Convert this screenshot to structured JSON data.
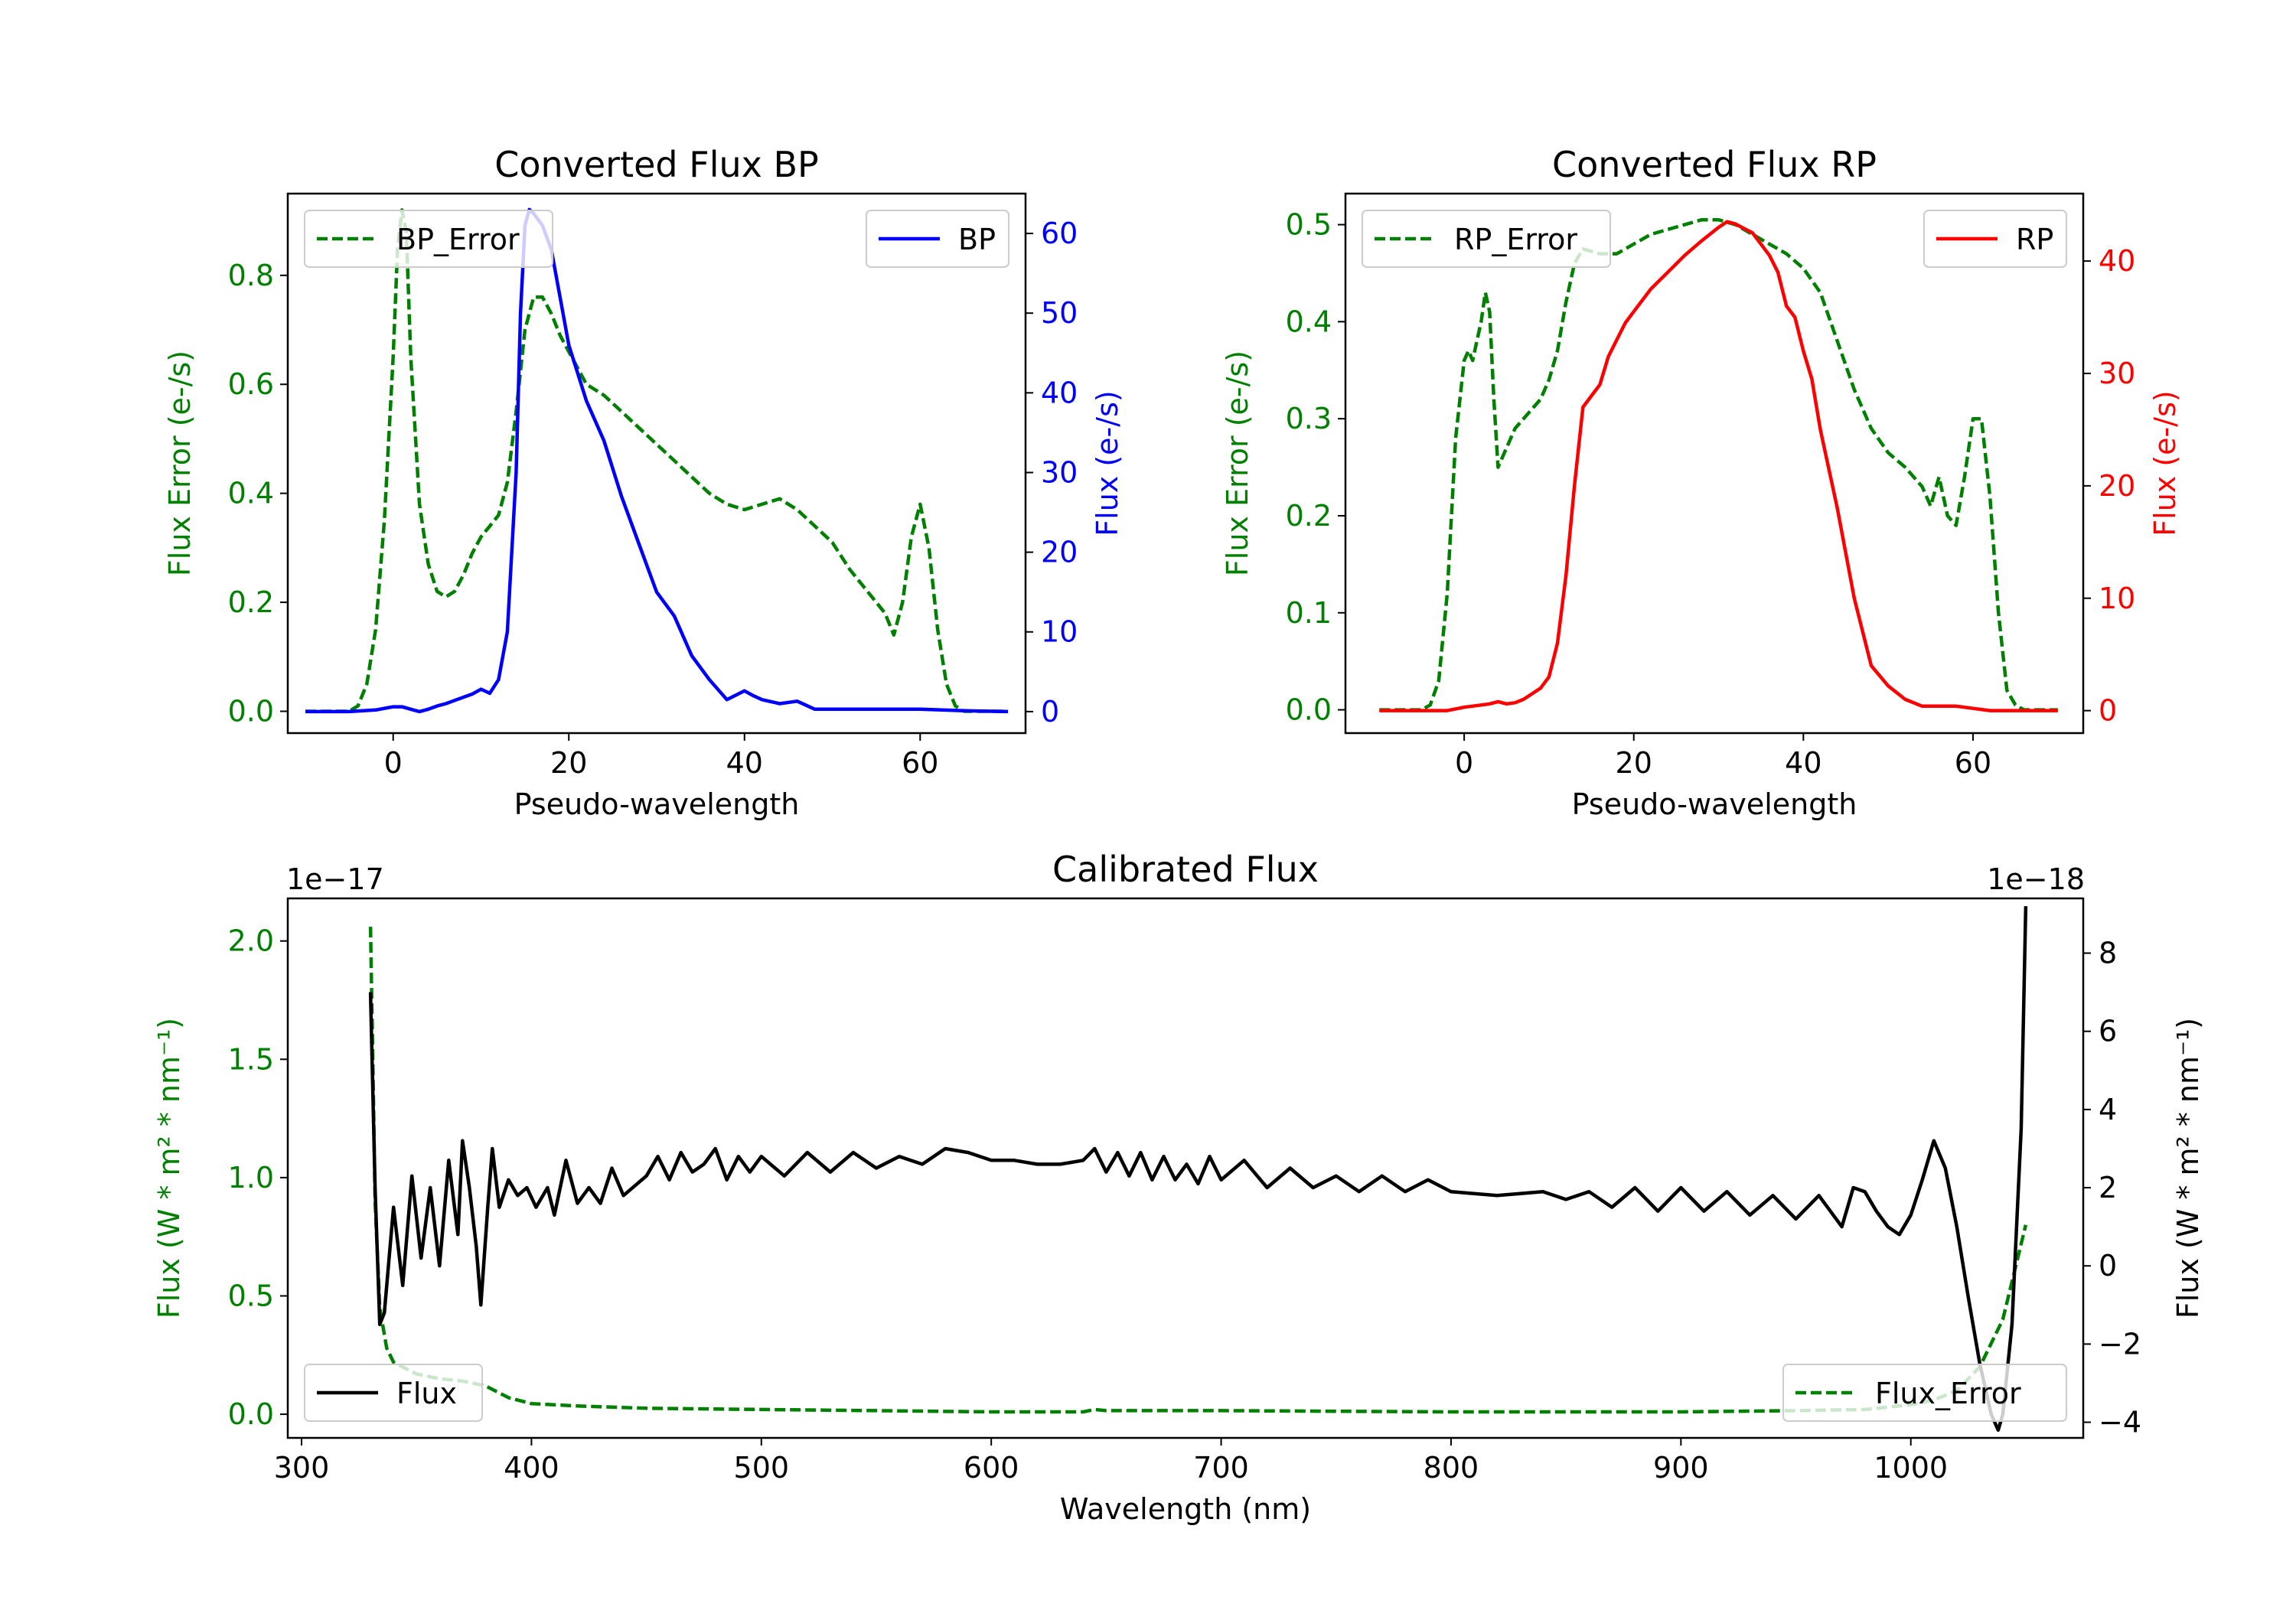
{
  "chart_data": [
    {
      "type": "line",
      "title": "Converted Flux BP",
      "xlabel": "Pseudo-wavelength",
      "ylabel_left": "Flux Error (e-/s)",
      "ylabel_right": "Flux (e-/s)",
      "xlim": [
        -12,
        72
      ],
      "ylim_left": [
        -0.04,
        0.95
      ],
      "ylim_right": [
        -2.7,
        65
      ],
      "x_ticks": [
        0,
        20,
        40,
        60
      ],
      "y_left_ticks": [
        0.0,
        0.2,
        0.4,
        0.6,
        0.8
      ],
      "y_left_tick_labels": [
        "0.0",
        "0.2",
        "0.4",
        "0.6",
        "0.8"
      ],
      "y_right_ticks": [
        0,
        10,
        20,
        30,
        40,
        50,
        60
      ],
      "colors": {
        "left_axis": "#008000",
        "right_axis": "#0000ff"
      },
      "series": [
        {
          "name": "BP_Error",
          "axis": "left",
          "style": "dashed",
          "color": "#008000",
          "legend_position": "upper-left",
          "x": [
            -10,
            -5,
            -4,
            -3,
            -2,
            -1,
            0,
            0.5,
            1,
            1.5,
            2,
            3,
            4,
            5,
            6,
            7,
            8,
            9,
            10,
            11,
            12,
            13,
            14,
            15,
            16,
            17,
            18,
            19,
            20,
            22,
            24,
            26,
            28,
            30,
            32,
            34,
            36,
            38,
            40,
            42,
            44,
            46,
            48,
            50,
            52,
            54,
            56,
            57,
            58,
            59,
            60,
            61,
            62,
            63,
            64,
            65,
            66,
            70
          ],
          "y": [
            0.0,
            0.0,
            0.01,
            0.05,
            0.15,
            0.35,
            0.65,
            0.85,
            0.92,
            0.88,
            0.65,
            0.38,
            0.27,
            0.22,
            0.21,
            0.22,
            0.25,
            0.29,
            0.32,
            0.34,
            0.36,
            0.42,
            0.55,
            0.7,
            0.76,
            0.76,
            0.73,
            0.69,
            0.66,
            0.6,
            0.58,
            0.55,
            0.52,
            0.49,
            0.46,
            0.43,
            0.4,
            0.38,
            0.37,
            0.38,
            0.39,
            0.37,
            0.34,
            0.31,
            0.26,
            0.22,
            0.18,
            0.14,
            0.2,
            0.32,
            0.38,
            0.3,
            0.15,
            0.05,
            0.01,
            0.0,
            0.0,
            0.0
          ]
        },
        {
          "name": "BP",
          "axis": "right",
          "style": "solid",
          "color": "#0000ff",
          "legend_position": "upper-right",
          "x": [
            -10,
            -5,
            -2,
            0,
            1,
            2,
            3,
            4,
            5,
            6,
            7,
            8,
            9,
            10,
            11,
            12,
            13,
            14,
            14.5,
            15,
            15.5,
            16,
            17,
            18,
            19,
            20,
            22,
            24,
            26,
            28,
            30,
            32,
            34,
            36,
            38,
            40,
            41,
            42,
            44,
            46,
            48,
            50,
            55,
            60,
            65,
            70
          ],
          "y": [
            0.0,
            0.0,
            0.2,
            0.6,
            0.6,
            0.3,
            0.0,
            0.3,
            0.7,
            1.0,
            1.4,
            1.8,
            2.2,
            2.8,
            2.3,
            4.0,
            10.0,
            30.0,
            50.0,
            61.0,
            63.0,
            62.5,
            61.0,
            58.0,
            52.0,
            46.0,
            39.0,
            34.0,
            27.0,
            21.0,
            15.0,
            12.0,
            7.0,
            4.0,
            1.5,
            2.6,
            2.0,
            1.5,
            1.0,
            1.3,
            0.3,
            0.3,
            0.3,
            0.3,
            0.1,
            0.0
          ]
        }
      ]
    },
    {
      "type": "line",
      "title": "Converted Flux RP",
      "xlabel": "Pseudo-wavelength",
      "ylabel_left": "Flux Error (e-/s)",
      "ylabel_right": "Flux (e-/s)",
      "xlim": [
        -14,
        73
      ],
      "ylim_left": [
        -0.024,
        0.532
      ],
      "ylim_right": [
        -2.0,
        46.0
      ],
      "x_ticks": [
        0,
        20,
        40,
        60
      ],
      "y_left_ticks": [
        0.0,
        0.1,
        0.2,
        0.3,
        0.4,
        0.5
      ],
      "y_left_tick_labels": [
        "0.0",
        "0.1",
        "0.2",
        "0.3",
        "0.4",
        "0.5"
      ],
      "y_right_ticks": [
        0,
        10,
        20,
        30,
        40
      ],
      "colors": {
        "left_axis": "#008000",
        "right_axis": "#ff0000"
      },
      "series": [
        {
          "name": "RP_Error",
          "axis": "left",
          "style": "dashed",
          "color": "#008000",
          "legend_position": "upper-left",
          "x": [
            -10,
            -5,
            -4,
            -3,
            -2,
            -1,
            0,
            0.5,
            1,
            1.5,
            2,
            2.5,
            3,
            3.5,
            4,
            5,
            6,
            7,
            8,
            9,
            10,
            11,
            12,
            13,
            14,
            16,
            18,
            20,
            22,
            24,
            26,
            28,
            30,
            32,
            34,
            36,
            38,
            40,
            42,
            44,
            46,
            48,
            50,
            52,
            54,
            55,
            56,
            57,
            58,
            59,
            60,
            61,
            62,
            63,
            64,
            65,
            66,
            70
          ],
          "y": [
            0.0,
            0.0,
            0.005,
            0.03,
            0.12,
            0.28,
            0.36,
            0.37,
            0.36,
            0.38,
            0.4,
            0.43,
            0.41,
            0.32,
            0.25,
            0.27,
            0.29,
            0.3,
            0.31,
            0.32,
            0.34,
            0.37,
            0.42,
            0.46,
            0.475,
            0.47,
            0.47,
            0.48,
            0.49,
            0.495,
            0.5,
            0.505,
            0.505,
            0.5,
            0.49,
            0.48,
            0.47,
            0.455,
            0.43,
            0.38,
            0.33,
            0.29,
            0.265,
            0.25,
            0.23,
            0.21,
            0.24,
            0.2,
            0.19,
            0.24,
            0.3,
            0.3,
            0.22,
            0.1,
            0.02,
            0.005,
            0.0,
            0.0
          ],
          "dash_gaps_near_x": [
            55
          ]
        },
        {
          "name": "RP",
          "axis": "right",
          "style": "solid",
          "color": "#ff0000",
          "legend_position": "upper-right",
          "x": [
            -10,
            -5,
            -2,
            0,
            2,
            3,
            4,
            5,
            6,
            7,
            8,
            9,
            10,
            11,
            12,
            13,
            14,
            15,
            16,
            17,
            18,
            19,
            20,
            22,
            24,
            26,
            28,
            30,
            31,
            32,
            34,
            36,
            37,
            38,
            39,
            40,
            41,
            42,
            44,
            46,
            48,
            50,
            52,
            54,
            56,
            58,
            60,
            62,
            65,
            70
          ],
          "y": [
            0.0,
            0.0,
            0.0,
            0.3,
            0.5,
            0.6,
            0.8,
            0.6,
            0.7,
            1.0,
            1.5,
            2.0,
            3.0,
            6.0,
            12.0,
            20.0,
            27.0,
            28.0,
            29.0,
            31.5,
            33.0,
            34.5,
            35.5,
            37.5,
            39.0,
            40.5,
            41.8,
            43.0,
            43.5,
            43.3,
            42.5,
            40.5,
            39.0,
            36.0,
            35.0,
            32.0,
            29.5,
            25.0,
            18.0,
            10.0,
            4.0,
            2.2,
            1.0,
            0.4,
            0.4,
            0.4,
            0.2,
            0.0,
            0.0,
            0.0
          ]
        }
      ]
    },
    {
      "type": "line",
      "title": "Calibrated Flux",
      "xlabel": "Wavelength (nm)",
      "ylabel_left": "Flux (W * m² * nm⁻¹)",
      "ylabel_right": "Flux (W * m² * nm⁻¹)",
      "offset_left": "1e−17",
      "offset_right": "1e−18",
      "xlim": [
        294,
        1075
      ],
      "ylim_left": [
        -0.1,
        2.18
      ],
      "ylim_right": [
        -4.4,
        9.4
      ],
      "x_ticks": [
        300,
        400,
        500,
        600,
        700,
        800,
        900,
        1000
      ],
      "y_left_ticks": [
        0.0,
        0.5,
        1.0,
        1.5,
        2.0
      ],
      "y_left_tick_labels": [
        "0.0",
        "0.5",
        "1.0",
        "1.5",
        "2.0"
      ],
      "y_right_ticks": [
        -4,
        -2,
        0,
        2,
        4,
        6,
        8
      ],
      "y_right_tick_labels": [
        "−4",
        "−2",
        "0",
        "2",
        "4",
        "6",
        "8"
      ],
      "colors": {
        "left_axis": "#008000",
        "right_axis": "#000000"
      },
      "series": [
        {
          "name": "Flux_Error",
          "axis": "left",
          "style": "dashed",
          "color": "#008000",
          "legend_position": "lower-right",
          "x": [
            330,
            331,
            332,
            334,
            337,
            340,
            350,
            360,
            370,
            380,
            390,
            400,
            420,
            450,
            500,
            550,
            600,
            640,
            645,
            650,
            700,
            800,
            900,
            950,
            980,
            1000,
            1010,
            1020,
            1030,
            1040,
            1045,
            1050
          ],
          "y": [
            2.06,
            1.5,
            0.9,
            0.45,
            0.28,
            0.22,
            0.17,
            0.15,
            0.14,
            0.12,
            0.07,
            0.045,
            0.035,
            0.025,
            0.02,
            0.015,
            0.01,
            0.01,
            0.02,
            0.015,
            0.015,
            0.01,
            0.01,
            0.015,
            0.02,
            0.04,
            0.06,
            0.1,
            0.2,
            0.4,
            0.6,
            0.8
          ]
        },
        {
          "name": "Flux",
          "axis": "right",
          "style": "solid",
          "color": "#000000",
          "legend_position": "lower-left",
          "x": [
            330,
            332,
            334,
            336,
            340,
            344,
            348,
            352,
            356,
            360,
            364,
            368,
            370,
            373,
            376,
            378,
            381,
            383,
            386,
            390,
            394,
            398,
            402,
            407,
            410,
            415,
            420,
            425,
            430,
            435,
            440,
            450,
            455,
            460,
            465,
            470,
            475,
            480,
            485,
            490,
            495,
            500,
            510,
            520,
            530,
            540,
            550,
            560,
            570,
            580,
            590,
            600,
            610,
            620,
            630,
            640,
            645,
            650,
            655,
            660,
            665,
            670,
            675,
            680,
            685,
            690,
            695,
            700,
            710,
            720,
            730,
            740,
            750,
            760,
            770,
            780,
            790,
            800,
            820,
            840,
            850,
            860,
            870,
            880,
            890,
            900,
            910,
            920,
            930,
            940,
            950,
            960,
            970,
            975,
            980,
            985,
            990,
            995,
            1000,
            1005,
            1010,
            1015,
            1020,
            1025,
            1030,
            1035,
            1038,
            1040,
            1044,
            1048,
            1050
          ],
          "y": [
            7.0,
            2.0,
            -1.5,
            -1.2,
            1.5,
            -0.5,
            2.3,
            0.2,
            2.0,
            0.0,
            2.7,
            0.8,
            3.2,
            2.0,
            0.5,
            -1.0,
            1.5,
            3.0,
            1.5,
            2.2,
            1.8,
            2.0,
            1.5,
            2.0,
            1.3,
            2.7,
            1.6,
            2.0,
            1.6,
            2.5,
            1.8,
            2.3,
            2.8,
            2.2,
            2.9,
            2.4,
            2.6,
            3.0,
            2.2,
            2.8,
            2.4,
            2.8,
            2.3,
            2.9,
            2.4,
            2.9,
            2.5,
            2.8,
            2.6,
            3.0,
            2.9,
            2.7,
            2.7,
            2.6,
            2.6,
            2.7,
            3.0,
            2.4,
            2.9,
            2.3,
            2.9,
            2.2,
            2.8,
            2.2,
            2.6,
            2.1,
            2.8,
            2.2,
            2.7,
            2.0,
            2.5,
            2.0,
            2.3,
            1.9,
            2.3,
            1.9,
            2.2,
            1.9,
            1.8,
            1.9,
            1.7,
            1.9,
            1.5,
            2.0,
            1.4,
            2.0,
            1.4,
            1.9,
            1.3,
            1.8,
            1.2,
            1.8,
            1.0,
            2.0,
            1.9,
            1.4,
            1.0,
            0.8,
            1.3,
            2.2,
            3.2,
            2.5,
            1.0,
            -0.8,
            -2.5,
            -3.8,
            -4.2,
            -3.8,
            -1.5,
            3.5,
            9.2
          ]
        }
      ]
    }
  ]
}
